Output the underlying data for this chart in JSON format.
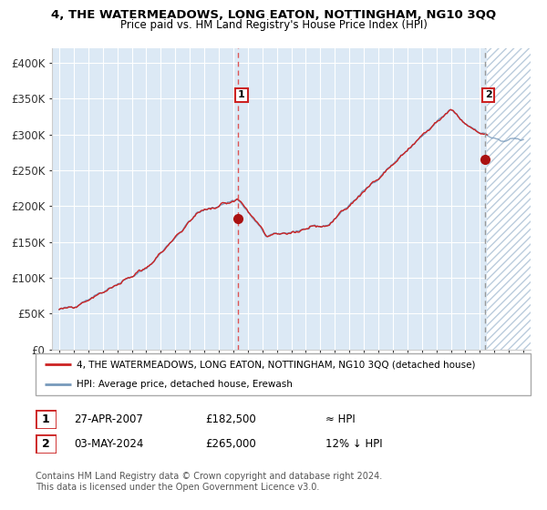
{
  "title": "4, THE WATERMEADOWS, LONG EATON, NOTTINGHAM, NG10 3QQ",
  "subtitle": "Price paid vs. HM Land Registry's House Price Index (HPI)",
  "background_color": "#dce9f5",
  "hpi_color": "#7799bb",
  "price_color": "#cc2222",
  "marker_color": "#aa1111",
  "vline1_color": "#dd5555",
  "vline2_color": "#999999",
  "ylim": [
    0,
    420000
  ],
  "yticks": [
    0,
    50000,
    100000,
    150000,
    200000,
    250000,
    300000,
    350000,
    400000
  ],
  "ytick_labels": [
    "£0",
    "£50K",
    "£100K",
    "£150K",
    "£200K",
    "£250K",
    "£300K",
    "£350K",
    "£400K"
  ],
  "sale1_price": 182500,
  "sale1_year": 2007.32,
  "sale2_price": 265000,
  "sale2_year": 2024.34,
  "legend_label1": "4, THE WATERMEADOWS, LONG EATON, NOTTINGHAM, NG10 3QQ (detached house)",
  "legend_label2": "HPI: Average price, detached house, Erewash",
  "table_row1_num": "1",
  "table_row1_date": "27-APR-2007",
  "table_row1_price": "£182,500",
  "table_row1_hpi": "≈ HPI",
  "table_row2_num": "2",
  "table_row2_date": "03-MAY-2024",
  "table_row2_price": "£265,000",
  "table_row2_hpi": "12% ↓ HPI",
  "footer": "Contains HM Land Registry data © Crown copyright and database right 2024.\nThis data is licensed under the Open Government Licence v3.0.",
  "xlim_start": 1994.5,
  "xlim_end": 2027.5,
  "future_start": 2024.5,
  "xtick_start": 1995,
  "xtick_end": 2027
}
